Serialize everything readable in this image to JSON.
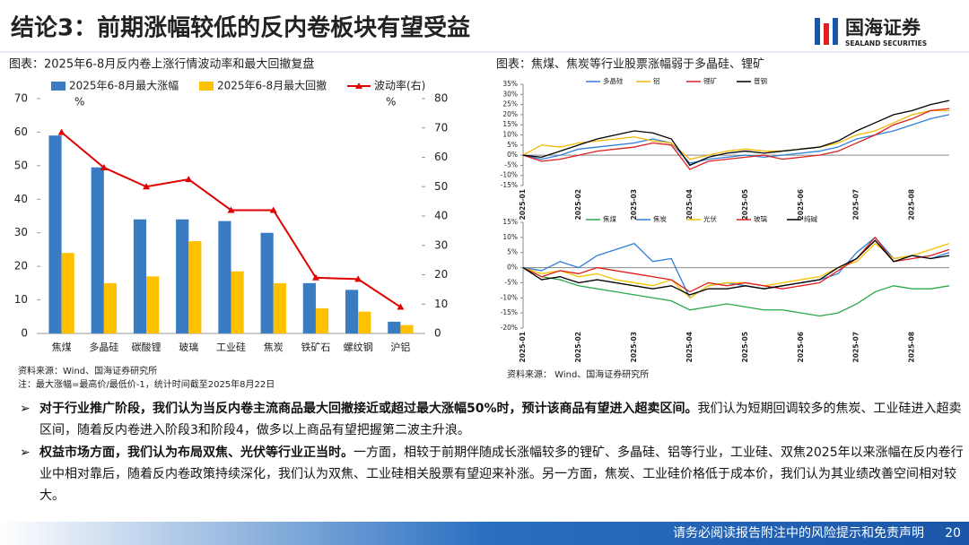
{
  "header": {
    "title": "结论3：前期涨幅较低的反内卷板块有望受益",
    "logo": "国海证券",
    "logo_en": "SEALAND SECURITIES"
  },
  "captions": [
    "图表：2025年6-8月反内卷上涨行情波动率和最大回撤复盘",
    "图表：焦煤、焦炭等行业股票涨幅弱于多晶硅、锂矿"
  ],
  "sources": [
    "资料来源：Wind、国海证券研究所",
    "注：最大涨幅=最高价/最低价-1，统计时间截至2025年8月22日",
    "资料来源： Wind、国海证券研究所"
  ],
  "bullets": [
    {
      "bold": "对于行业推广阶段，我们认为当反内卷主流商品最大回撤接近或超过最大涨幅50%时，预计该商品有望进入超卖区间。",
      "text": "我们认为短期回调较多的焦炭、工业硅进入超卖区间，随着反内卷进入阶段3和阶段4，做多以上商品有望把握第二波主升浪。"
    },
    {
      "bold": "权益市场方面，我们认为布局双焦、光伏等行业正当时。",
      "text": "一方面，相较于前期伴随成长涨幅较多的锂矿、多晶硅、铝等行业，工业硅、双焦2025年以来涨幅在反内卷行业中相对靠后，随着反内卷政策持续深化，我们认为双焦、工业硅相关股票有望迎来补涨。另一方面，焦炭、工业硅价格低于成本价，我们认为其业绩改善空间相对较大。"
    }
  ],
  "footer": {
    "disclaimer": "请务必阅读报告附注中的风险提示和免责声明",
    "page": "20"
  },
  "chart_data": [
    {
      "type": "bar",
      "categories": [
        "焦煤",
        "多晶硅",
        "碳酸锂",
        "玻璃",
        "工业硅",
        "焦炭",
        "铁矿石",
        "螺纹钢",
        "沪铝"
      ],
      "series": [
        {
          "name": "2025年6-8月最大涨幅",
          "color": "#3a7cc3",
          "values": [
            59,
            49.5,
            34,
            34,
            33.5,
            30,
            15,
            13,
            3.5
          ]
        },
        {
          "name": "2025年6-8月最大回撤",
          "color": "#ffc000",
          "values": [
            24,
            15,
            17,
            27.5,
            18.5,
            15,
            7.5,
            6.5,
            2.5
          ]
        },
        {
          "name": "波动率(右)",
          "color": "#e00000",
          "axis": "y2",
          "values": [
            68.5,
            56.5,
            50,
            52.5,
            42,
            42,
            19,
            18.5,
            9
          ]
        }
      ],
      "ylim": [
        0,
        70
      ],
      "yticks": [
        0,
        10,
        20,
        30,
        40,
        50,
        60,
        70
      ],
      "y_unit": "%",
      "y2lim": [
        0,
        80
      ],
      "y2ticks": [
        0,
        10,
        20,
        30,
        40,
        50,
        60,
        70,
        80
      ],
      "y2_unit": "%"
    },
    {
      "type": "line",
      "categories": [
        "2025-01",
        null,
        null,
        "2025-02",
        null,
        null,
        "2025-03",
        null,
        null,
        "2025-04",
        null,
        null,
        "2025-05",
        null,
        null,
        "2025-06",
        null,
        null,
        "2025-07",
        null,
        null,
        "2025-08",
        null,
        null
      ],
      "series": [
        {
          "name": "多晶硅",
          "color": "#2f7fd8",
          "values": [
            0,
            -2,
            0,
            3,
            4,
            5,
            6,
            8,
            6,
            -4,
            -2,
            -1,
            0,
            -1,
            0,
            1,
            2,
            4,
            8,
            10,
            12,
            15,
            18,
            20
          ]
        },
        {
          "name": "铝",
          "color": "#f5b800",
          "values": [
            0,
            5,
            4,
            6,
            7,
            8,
            9,
            7,
            6,
            -2,
            0,
            2,
            3,
            2,
            2,
            3,
            4,
            6,
            10,
            12,
            16,
            20,
            22,
            22
          ]
        },
        {
          "name": "锂矿",
          "color": "#e02020",
          "values": [
            0,
            -3,
            -2,
            0,
            2,
            3,
            4,
            6,
            5,
            -7,
            -3,
            -2,
            -1,
            0,
            -2,
            -1,
            0,
            2,
            6,
            10,
            15,
            18,
            22,
            23
          ]
        },
        {
          "name": "普钢",
          "color": "#000000",
          "values": [
            0,
            -1,
            2,
            5,
            8,
            10,
            12,
            11,
            8,
            -5,
            -1,
            1,
            2,
            1,
            2,
            3,
            4,
            7,
            12,
            16,
            20,
            22,
            25,
            27
          ]
        }
      ],
      "ylim": [
        -15,
        35
      ],
      "yticks": [
        {
          "value": -15,
          "label": "-15%"
        },
        {
          "value": -10,
          "label": "-10%"
        },
        {
          "value": -5,
          "label": "-5%"
        },
        {
          "value": 0,
          "label": "0%"
        },
        {
          "value": 5,
          "label": "5%"
        },
        {
          "value": 10,
          "label": "10%"
        },
        {
          "value": 15,
          "label": "15%"
        },
        {
          "value": 20,
          "label": "20%"
        },
        {
          "value": 25,
          "label": "25%"
        },
        {
          "value": 30,
          "label": "30%"
        },
        {
          "value": 35,
          "label": "35%"
        }
      ]
    },
    {
      "type": "line",
      "categories": [
        "2025-01",
        null,
        null,
        "2025-02",
        null,
        null,
        "2025-03",
        null,
        null,
        "2025-04",
        null,
        null,
        "2025-05",
        null,
        null,
        "2025-06",
        null,
        null,
        "2025-07",
        null,
        null,
        "2025-08",
        null,
        null
      ],
      "series": [
        {
          "name": "焦煤",
          "color": "#2aa84a",
          "values": [
            0,
            -3,
            -4,
            -6,
            -7,
            -8,
            -9,
            -10,
            -11,
            -14,
            -13,
            -12,
            -13,
            -14,
            -14,
            -15,
            -16,
            -15,
            -12,
            -8,
            -6,
            -7,
            -7,
            -6
          ]
        },
        {
          "name": "焦炭",
          "color": "#2f7fd8",
          "values": [
            0,
            -1,
            2,
            0,
            4,
            6,
            8,
            2,
            3,
            -10,
            -6,
            -5,
            -6,
            -7,
            -6,
            -5,
            -4,
            -2,
            5,
            10,
            3,
            4,
            3,
            5
          ]
        },
        {
          "name": "光伏",
          "color": "#f5c400",
          "values": [
            0,
            -2,
            -1,
            -3,
            -2,
            -4,
            -5,
            -6,
            -4,
            -10,
            -6,
            -5,
            -5,
            -6,
            -5,
            -4,
            -3,
            0,
            2,
            8,
            3,
            4,
            6,
            8
          ]
        },
        {
          "name": "玻璃",
          "color": "#e02020",
          "values": [
            0,
            -3,
            -1,
            -2,
            0,
            -1,
            -2,
            -3,
            -4,
            -8,
            -5,
            -6,
            -5,
            -6,
            -7,
            -6,
            -5,
            -1,
            3,
            10,
            2,
            3,
            4,
            6
          ]
        },
        {
          "name": "纯碱",
          "color": "#000000",
          "values": [
            0,
            -4,
            -3,
            -5,
            -4,
            -5,
            -6,
            -7,
            -6,
            -9,
            -7,
            -7,
            -6,
            -7,
            -6,
            -5,
            -4,
            0,
            3,
            9,
            2,
            4,
            3,
            4
          ]
        }
      ],
      "ylim": [
        -20,
        15
      ],
      "yticks": [
        {
          "value": -20,
          "label": "-20%"
        },
        {
          "value": -15,
          "label": "-15%"
        },
        {
          "value": -10,
          "label": "-10%"
        },
        {
          "value": -5,
          "label": "-5%"
        },
        {
          "value": 0,
          "label": "0%"
        },
        {
          "value": 5,
          "label": "5%"
        },
        {
          "value": 10,
          "label": "10%"
        },
        {
          "value": 15,
          "label": "15%"
        }
      ]
    }
  ]
}
